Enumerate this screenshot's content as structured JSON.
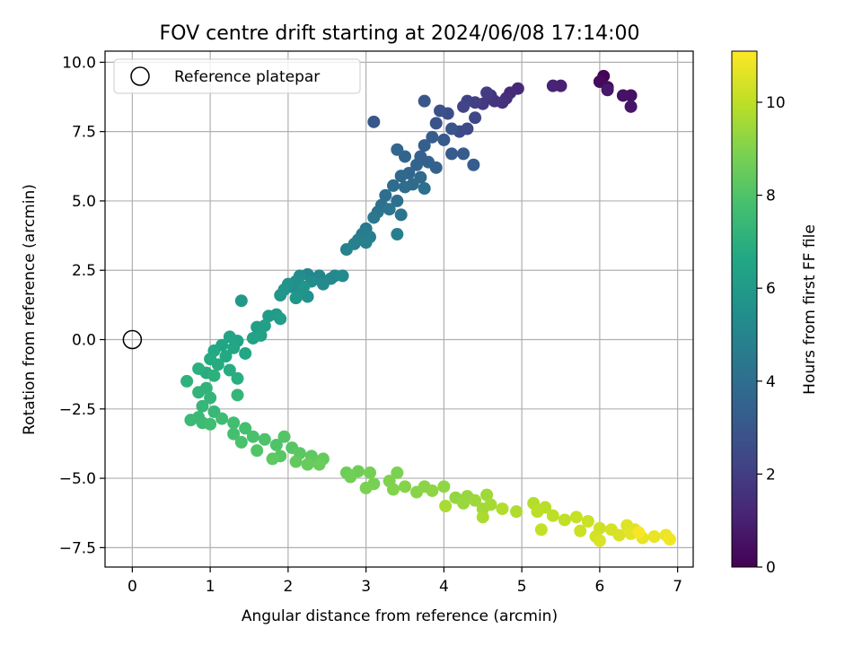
{
  "chart_data": {
    "type": "scatter",
    "title": "FOV centre drift starting at 2024/06/08 17:14:00",
    "xlabel": "Angular distance from reference (arcmin)",
    "ylabel": "Rotation from reference (arcmin)",
    "xlim": [
      -0.35,
      7.2
    ],
    "ylim": [
      -8.2,
      10.4
    ],
    "xticks": [
      0,
      1,
      2,
      3,
      4,
      5,
      6,
      7
    ],
    "yticks": [
      -7.5,
      -5.0,
      -2.5,
      0.0,
      2.5,
      5.0,
      7.5,
      10.0
    ],
    "xtick_labels": [
      "0",
      "1",
      "2",
      "3",
      "4",
      "5",
      "6",
      "7"
    ],
    "ytick_labels": [
      "−7.5",
      "−5.0",
      "−2.5",
      "0.0",
      "2.5",
      "5.0",
      "7.5",
      "10.0"
    ],
    "grid": true,
    "legend": {
      "placement": "upper-left",
      "entries": [
        "Reference platepar"
      ]
    },
    "reference_point": {
      "x": 0.0,
      "y": 0.0,
      "label": "Reference platepar"
    },
    "colorbar": {
      "label": "Hours from first FF file",
      "colormap": "viridis",
      "range": [
        0,
        11.1
      ],
      "ticks": [
        0,
        2,
        4,
        6,
        8,
        10
      ],
      "tick_labels": [
        "0",
        "2",
        "4",
        "6",
        "8",
        "10"
      ]
    },
    "series": [
      {
        "points": [
          {
            "x": 6.05,
            "y": 9.5,
            "h": 0.05
          },
          {
            "x": 6.1,
            "y": 9.1,
            "h": 0.2
          },
          {
            "x": 6.0,
            "y": 9.3,
            "h": 0.3
          },
          {
            "x": 6.4,
            "y": 8.8,
            "h": 0.45
          },
          {
            "x": 6.3,
            "y": 8.8,
            "h": 0.55
          },
          {
            "x": 6.4,
            "y": 8.4,
            "h": 0.65
          },
          {
            "x": 6.1,
            "y": 9.0,
            "h": 0.75
          },
          {
            "x": 5.5,
            "y": 9.15,
            "h": 1.0
          },
          {
            "x": 5.4,
            "y": 9.15,
            "h": 1.1
          },
          {
            "x": 4.95,
            "y": 9.05,
            "h": 1.25
          },
          {
            "x": 4.85,
            "y": 8.9,
            "h": 1.35
          },
          {
            "x": 4.8,
            "y": 8.7,
            "h": 1.45
          },
          {
            "x": 4.75,
            "y": 8.55,
            "h": 1.55
          },
          {
            "x": 4.65,
            "y": 8.6,
            "h": 1.65
          },
          {
            "x": 4.6,
            "y": 8.8,
            "h": 1.75
          },
          {
            "x": 4.5,
            "y": 8.5,
            "h": 1.85
          },
          {
            "x": 4.55,
            "y": 8.9,
            "h": 1.95
          },
          {
            "x": 4.4,
            "y": 8.55,
            "h": 2.05
          },
          {
            "x": 4.3,
            "y": 8.6,
            "h": 2.15
          },
          {
            "x": 4.25,
            "y": 8.4,
            "h": 2.25
          },
          {
            "x": 4.4,
            "y": 8.0,
            "h": 2.35
          },
          {
            "x": 4.3,
            "y": 7.6,
            "h": 2.45
          },
          {
            "x": 4.2,
            "y": 7.5,
            "h": 2.55
          },
          {
            "x": 4.05,
            "y": 8.15,
            "h": 2.65
          },
          {
            "x": 3.95,
            "y": 8.25,
            "h": 2.75
          },
          {
            "x": 3.9,
            "y": 7.8,
            "h": 2.85
          },
          {
            "x": 4.1,
            "y": 7.6,
            "h": 2.95
          },
          {
            "x": 3.75,
            "y": 8.6,
            "h": 3.0
          },
          {
            "x": 3.1,
            "y": 7.85,
            "h": 3.05
          },
          {
            "x": 4.0,
            "y": 7.2,
            "h": 3.1
          },
          {
            "x": 4.1,
            "y": 6.7,
            "h": 3.15
          },
          {
            "x": 4.25,
            "y": 6.7,
            "h": 3.2
          },
          {
            "x": 4.38,
            "y": 6.3,
            "h": 3.25
          },
          {
            "x": 3.85,
            "y": 7.3,
            "h": 3.3
          },
          {
            "x": 3.75,
            "y": 7.0,
            "h": 3.35
          },
          {
            "x": 3.7,
            "y": 6.6,
            "h": 3.4
          },
          {
            "x": 3.9,
            "y": 6.2,
            "h": 3.45
          },
          {
            "x": 3.8,
            "y": 6.4,
            "h": 3.5
          },
          {
            "x": 3.65,
            "y": 6.3,
            "h": 3.55
          },
          {
            "x": 3.5,
            "y": 6.6,
            "h": 3.6
          },
          {
            "x": 3.4,
            "y": 6.85,
            "h": 3.65
          },
          {
            "x": 3.55,
            "y": 6.0,
            "h": 3.7
          },
          {
            "x": 3.45,
            "y": 5.9,
            "h": 3.75
          },
          {
            "x": 3.7,
            "y": 5.85,
            "h": 3.8
          },
          {
            "x": 3.6,
            "y": 5.6,
            "h": 3.85
          },
          {
            "x": 3.5,
            "y": 5.5,
            "h": 3.9
          },
          {
            "x": 3.35,
            "y": 5.55,
            "h": 3.95
          },
          {
            "x": 3.25,
            "y": 5.2,
            "h": 4.0
          },
          {
            "x": 3.4,
            "y": 5.0,
            "h": 4.05
          },
          {
            "x": 3.75,
            "y": 5.45,
            "h": 4.1
          },
          {
            "x": 3.2,
            "y": 4.85,
            "h": 4.15
          },
          {
            "x": 3.15,
            "y": 4.6,
            "h": 4.2
          },
          {
            "x": 3.3,
            "y": 4.7,
            "h": 4.3
          },
          {
            "x": 3.45,
            "y": 4.5,
            "h": 4.35
          },
          {
            "x": 3.1,
            "y": 4.4,
            "h": 4.4
          },
          {
            "x": 3.0,
            "y": 4.0,
            "h": 4.5
          },
          {
            "x": 2.95,
            "y": 3.8,
            "h": 4.6
          },
          {
            "x": 3.05,
            "y": 3.7,
            "h": 4.65
          },
          {
            "x": 2.9,
            "y": 3.6,
            "h": 4.7
          },
          {
            "x": 3.4,
            "y": 3.8,
            "h": 4.75
          },
          {
            "x": 2.85,
            "y": 3.45,
            "h": 4.8
          },
          {
            "x": 3.0,
            "y": 3.5,
            "h": 4.85
          },
          {
            "x": 2.75,
            "y": 3.25,
            "h": 4.9
          },
          {
            "x": 2.4,
            "y": 2.3,
            "h": 5.0
          },
          {
            "x": 2.35,
            "y": 2.2,
            "h": 5.05
          },
          {
            "x": 2.25,
            "y": 2.35,
            "h": 5.1
          },
          {
            "x": 2.55,
            "y": 2.2,
            "h": 5.15
          },
          {
            "x": 2.6,
            "y": 2.3,
            "h": 5.2
          },
          {
            "x": 2.7,
            "y": 2.3,
            "h": 5.25
          },
          {
            "x": 2.45,
            "y": 2.0,
            "h": 5.3
          },
          {
            "x": 2.3,
            "y": 2.1,
            "h": 5.35
          },
          {
            "x": 2.15,
            "y": 2.3,
            "h": 5.4
          },
          {
            "x": 2.1,
            "y": 2.1,
            "h": 5.45
          },
          {
            "x": 2.05,
            "y": 1.9,
            "h": 5.5
          },
          {
            "x": 2.15,
            "y": 1.7,
            "h": 5.55
          },
          {
            "x": 2.25,
            "y": 1.55,
            "h": 5.6
          },
          {
            "x": 2.0,
            "y": 2.0,
            "h": 5.65
          },
          {
            "x": 1.95,
            "y": 1.8,
            "h": 5.7
          },
          {
            "x": 2.2,
            "y": 1.9,
            "h": 5.75
          },
          {
            "x": 1.9,
            "y": 1.6,
            "h": 5.8
          },
          {
            "x": 2.1,
            "y": 1.5,
            "h": 5.85
          },
          {
            "x": 1.4,
            "y": 1.4,
            "h": 5.9
          },
          {
            "x": 1.85,
            "y": 0.9,
            "h": 6.0
          },
          {
            "x": 1.75,
            "y": 0.85,
            "h": 6.1
          },
          {
            "x": 1.9,
            "y": 0.75,
            "h": 6.15
          },
          {
            "x": 1.6,
            "y": 0.45,
            "h": 6.2
          },
          {
            "x": 1.7,
            "y": 0.5,
            "h": 6.25
          },
          {
            "x": 1.65,
            "y": 0.15,
            "h": 6.3
          },
          {
            "x": 1.55,
            "y": 0.05,
            "h": 6.35
          },
          {
            "x": 1.35,
            "y": -0.05,
            "h": 6.4
          },
          {
            "x": 1.25,
            "y": 0.1,
            "h": 6.45
          },
          {
            "x": 1.15,
            "y": -0.2,
            "h": 6.5
          },
          {
            "x": 1.3,
            "y": -0.3,
            "h": 6.55
          },
          {
            "x": 1.45,
            "y": -0.5,
            "h": 6.6
          },
          {
            "x": 1.2,
            "y": -0.6,
            "h": 6.65
          },
          {
            "x": 1.05,
            "y": -0.4,
            "h": 6.7
          },
          {
            "x": 1.0,
            "y": -0.7,
            "h": 6.75
          },
          {
            "x": 1.1,
            "y": -0.9,
            "h": 6.8
          },
          {
            "x": 1.25,
            "y": -1.1,
            "h": 6.85
          },
          {
            "x": 0.95,
            "y": -1.2,
            "h": 6.9
          },
          {
            "x": 1.35,
            "y": -1.4,
            "h": 6.95
          },
          {
            "x": 0.85,
            "y": -1.05,
            "h": 7.0
          },
          {
            "x": 1.05,
            "y": -1.3,
            "h": 7.05
          },
          {
            "x": 0.7,
            "y": -1.5,
            "h": 7.1
          },
          {
            "x": 0.95,
            "y": -1.75,
            "h": 7.15
          },
          {
            "x": 0.85,
            "y": -1.9,
            "h": 7.2
          },
          {
            "x": 1.0,
            "y": -2.1,
            "h": 7.25
          },
          {
            "x": 1.35,
            "y": -2.0,
            "h": 7.3
          },
          {
            "x": 0.9,
            "y": -2.4,
            "h": 7.35
          },
          {
            "x": 1.05,
            "y": -2.6,
            "h": 7.4
          },
          {
            "x": 0.85,
            "y": -2.8,
            "h": 7.45
          },
          {
            "x": 0.75,
            "y": -2.9,
            "h": 7.5
          },
          {
            "x": 0.9,
            "y": -3.0,
            "h": 7.55
          },
          {
            "x": 1.15,
            "y": -2.85,
            "h": 7.6
          },
          {
            "x": 1.0,
            "y": -3.05,
            "h": 7.65
          },
          {
            "x": 1.3,
            "y": -3.0,
            "h": 7.7
          },
          {
            "x": 1.45,
            "y": -3.2,
            "h": 7.75
          },
          {
            "x": 1.3,
            "y": -3.4,
            "h": 7.8
          },
          {
            "x": 1.55,
            "y": -3.5,
            "h": 7.85
          },
          {
            "x": 1.4,
            "y": -3.7,
            "h": 7.9
          },
          {
            "x": 1.7,
            "y": -3.6,
            "h": 7.95
          },
          {
            "x": 1.85,
            "y": -3.8,
            "h": 8.0
          },
          {
            "x": 1.6,
            "y": -4.0,
            "h": 8.05
          },
          {
            "x": 1.95,
            "y": -3.5,
            "h": 8.1
          },
          {
            "x": 2.05,
            "y": -3.9,
            "h": 8.15
          },
          {
            "x": 1.9,
            "y": -4.2,
            "h": 8.2
          },
          {
            "x": 2.15,
            "y": -4.1,
            "h": 8.25
          },
          {
            "x": 1.8,
            "y": -4.3,
            "h": 8.3
          },
          {
            "x": 2.3,
            "y": -4.2,
            "h": 8.35
          },
          {
            "x": 2.1,
            "y": -4.4,
            "h": 8.4
          },
          {
            "x": 2.45,
            "y": -4.3,
            "h": 8.45
          },
          {
            "x": 2.25,
            "y": -4.5,
            "h": 8.5
          },
          {
            "x": 2.4,
            "y": -4.5,
            "h": 8.55
          },
          {
            "x": 2.75,
            "y": -4.8,
            "h": 8.6
          },
          {
            "x": 2.9,
            "y": -4.75,
            "h": 8.65
          },
          {
            "x": 2.8,
            "y": -4.95,
            "h": 8.7
          },
          {
            "x": 3.05,
            "y": -4.8,
            "h": 8.75
          },
          {
            "x": 3.1,
            "y": -5.2,
            "h": 8.8
          },
          {
            "x": 3.0,
            "y": -5.35,
            "h": 8.85
          },
          {
            "x": 3.4,
            "y": -4.8,
            "h": 8.9
          },
          {
            "x": 3.3,
            "y": -5.1,
            "h": 8.95
          },
          {
            "x": 3.35,
            "y": -5.4,
            "h": 9.0
          },
          {
            "x": 3.5,
            "y": -5.3,
            "h": 9.05
          },
          {
            "x": 3.65,
            "y": -5.5,
            "h": 9.1
          },
          {
            "x": 3.75,
            "y": -5.3,
            "h": 9.15
          },
          {
            "x": 3.85,
            "y": -5.45,
            "h": 9.2
          },
          {
            "x": 4.0,
            "y": -5.3,
            "h": 9.25
          },
          {
            "x": 4.15,
            "y": -5.7,
            "h": 9.3
          },
          {
            "x": 4.3,
            "y": -5.65,
            "h": 9.35
          },
          {
            "x": 4.25,
            "y": -5.9,
            "h": 9.4
          },
          {
            "x": 4.4,
            "y": -5.8,
            "h": 9.45
          },
          {
            "x": 4.55,
            "y": -5.6,
            "h": 9.5
          },
          {
            "x": 4.5,
            "y": -6.1,
            "h": 9.55
          },
          {
            "x": 4.6,
            "y": -5.95,
            "h": 9.6
          },
          {
            "x": 4.02,
            "y": -6.0,
            "h": 9.65
          },
          {
            "x": 4.5,
            "y": -6.4,
            "h": 9.7
          },
          {
            "x": 4.93,
            "y": -6.2,
            "h": 9.75
          },
          {
            "x": 4.75,
            "y": -6.1,
            "h": 9.8
          },
          {
            "x": 5.15,
            "y": -5.9,
            "h": 9.85
          },
          {
            "x": 5.3,
            "y": -6.05,
            "h": 9.9
          },
          {
            "x": 5.2,
            "y": -6.2,
            "h": 9.95
          },
          {
            "x": 5.4,
            "y": -6.35,
            "h": 10.0
          },
          {
            "x": 5.55,
            "y": -6.5,
            "h": 10.05
          },
          {
            "x": 5.25,
            "y": -6.85,
            "h": 10.1
          },
          {
            "x": 5.7,
            "y": -6.4,
            "h": 10.15
          },
          {
            "x": 5.85,
            "y": -6.55,
            "h": 10.2
          },
          {
            "x": 5.75,
            "y": -6.9,
            "h": 10.25
          },
          {
            "x": 6.0,
            "y": -6.8,
            "h": 10.3
          },
          {
            "x": 5.95,
            "y": -7.1,
            "h": 10.35
          },
          {
            "x": 6.15,
            "y": -6.85,
            "h": 10.4
          },
          {
            "x": 6.25,
            "y": -7.05,
            "h": 10.45
          },
          {
            "x": 6.0,
            "y": -7.25,
            "h": 10.5
          },
          {
            "x": 6.35,
            "y": -6.7,
            "h": 10.55
          },
          {
            "x": 6.45,
            "y": -6.85,
            "h": 10.6
          },
          {
            "x": 6.4,
            "y": -7.0,
            "h": 10.65
          },
          {
            "x": 6.55,
            "y": -7.15,
            "h": 10.7
          },
          {
            "x": 6.7,
            "y": -7.1,
            "h": 10.75
          },
          {
            "x": 6.85,
            "y": -7.05,
            "h": 10.8
          },
          {
            "x": 6.9,
            "y": -7.2,
            "h": 10.9
          },
          {
            "x": 6.5,
            "y": -6.95,
            "h": 11.0
          }
        ]
      }
    ]
  }
}
